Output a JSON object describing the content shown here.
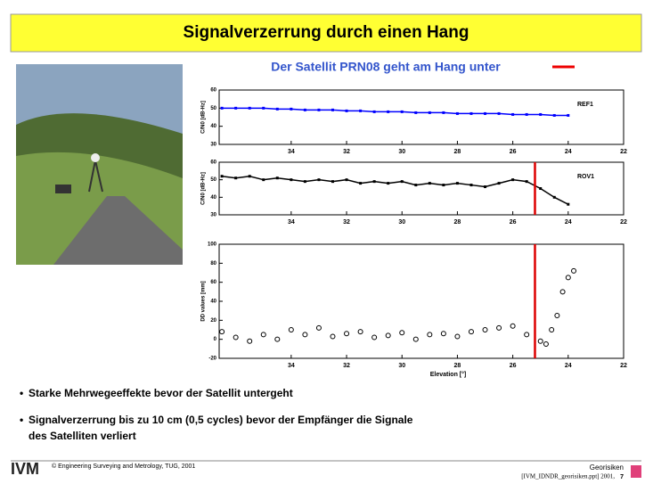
{
  "header": {
    "title": "Signalverzerrung durch einen Hang"
  },
  "figure_caption": "Der Satellit PRN08 geht am Hang unter",
  "bullets": [
    "Starke Mehrwegeeffekte bevor der Satellit untergeht",
    "Signalverzerrung bis zu 10 cm (0,5 cycles) bevor der Empfänger die Signale",
    "des Satelliten verliert"
  ],
  "footer": {
    "logo": "IVM",
    "copyright": "© Engineering Surveying and Metrology, TUG, 2001",
    "course": "Georisiken",
    "file": "[IVM_IDNDR_georisiken.ppt] 2001,",
    "page": "7"
  },
  "chart_data": [
    {
      "type": "line",
      "label": "REF1",
      "ylabel": "C/N0 [dB-Hz]",
      "color": "#0000ff",
      "x": [
        36.5,
        36,
        35.5,
        35,
        34.5,
        34,
        33.5,
        33,
        32.5,
        32,
        31.5,
        31,
        30.5,
        30,
        29.5,
        29,
        28.5,
        28,
        27.5,
        27,
        26.5,
        26,
        25.5,
        25,
        24.5,
        24
      ],
      "values": [
        50,
        50,
        50,
        50,
        49.5,
        49.5,
        49,
        49,
        49,
        48.5,
        48.5,
        48,
        48,
        48,
        47.5,
        47.5,
        47.5,
        47,
        47,
        47,
        47,
        46.5,
        46.5,
        46.5,
        46,
        46
      ],
      "xlim": [
        36.6,
        22
      ],
      "xticks": [
        34,
        32,
        30,
        28,
        26,
        24,
        22
      ],
      "ylim": [
        30,
        60
      ],
      "yticks": [
        30,
        40,
        50,
        60
      ]
    },
    {
      "type": "line",
      "label": "ROV1",
      "ylabel": "C/N0 [dB-Hz]",
      "color": "#000000",
      "x": [
        36.5,
        36,
        35.5,
        35,
        34.5,
        34,
        33.5,
        33,
        32.5,
        32,
        31.5,
        31,
        30.5,
        30,
        29.5,
        29,
        28.5,
        28,
        27.5,
        27,
        26.5,
        26,
        25.5,
        25,
        24.5,
        24
      ],
      "values": [
        52,
        51,
        52,
        50,
        51,
        50,
        49,
        50,
        49,
        50,
        48,
        49,
        48,
        49,
        47,
        48,
        47,
        48,
        47,
        46,
        48,
        50,
        49,
        45,
        40,
        36
      ],
      "xlim": [
        36.6,
        22
      ],
      "xticks": [
        34,
        32,
        30,
        28,
        26,
        24,
        22
      ],
      "ylim": [
        30,
        60
      ],
      "yticks": [
        30,
        40,
        50,
        60
      ],
      "vline": 25.2,
      "vline_color": "#dd0000"
    },
    {
      "type": "scatter",
      "ylabel": "DD values [mm]",
      "xlabel": "Elevation [°]",
      "color": "#000000",
      "x": [
        36.5,
        36,
        35.5,
        35,
        34.5,
        34,
        33.5,
        33,
        32.5,
        32,
        31.5,
        31,
        30.5,
        30,
        29.5,
        29,
        28.5,
        28,
        27.5,
        27,
        26.5,
        26,
        25.5,
        25,
        24.8,
        24.6,
        24.4,
        24.2,
        24,
        23.8
      ],
      "values": [
        8,
        2,
        -2,
        5,
        0,
        10,
        5,
        12,
        3,
        6,
        8,
        2,
        4,
        7,
        0,
        5,
        6,
        3,
        8,
        10,
        12,
        14,
        5,
        -2,
        -5,
        10,
        25,
        50,
        65,
        72
      ],
      "xlim": [
        36.6,
        22
      ],
      "xticks": [
        34,
        32,
        30,
        28,
        26,
        24,
        22
      ],
      "ylim": [
        -20,
        100
      ],
      "yticks": [
        -20,
        0,
        20,
        40,
        60,
        80,
        100
      ],
      "vline": 25.2,
      "vline_color": "#dd0000"
    }
  ]
}
